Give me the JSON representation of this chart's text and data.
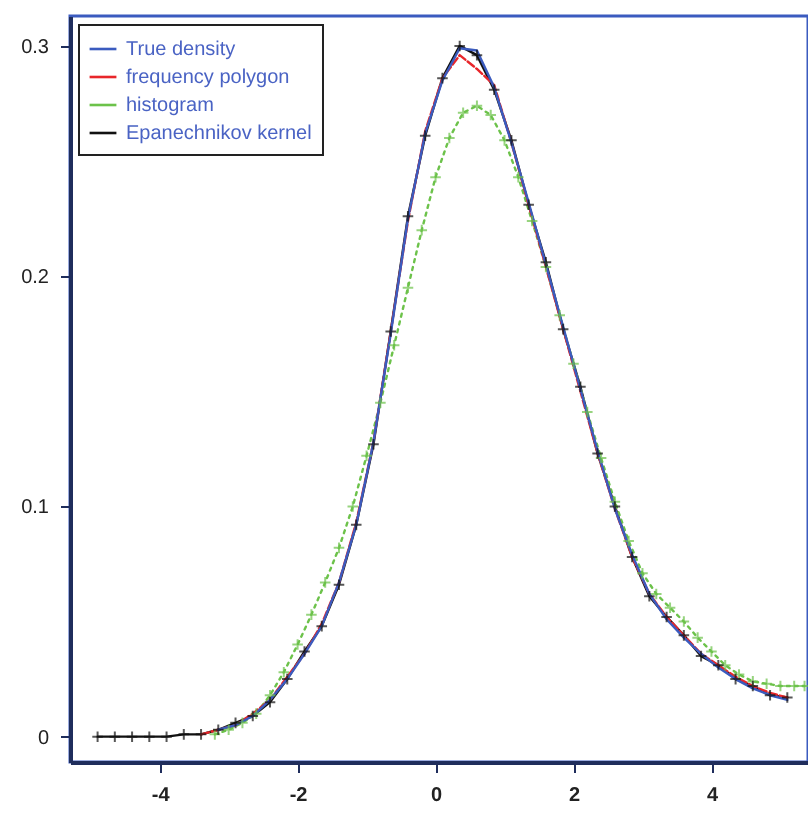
{
  "chart_data": {
    "type": "line",
    "xlim": [
      -5.3,
      5.4
    ],
    "ylim": [
      -0.011,
      0.313
    ],
    "xticks": [
      -4,
      -2,
      0,
      2,
      4
    ],
    "yticks": [
      {
        "value": 0,
        "label": "0"
      },
      {
        "value": 0.1,
        "label": "0.1"
      },
      {
        "value": 0.2,
        "label": "0.2"
      },
      {
        "value": 0.3,
        "label": "0.3"
      }
    ],
    "grid": false,
    "legend": "top left",
    "series": [
      {
        "name": "True density",
        "color": "#3b5bbf",
        "line_style": "solid",
        "marker": "none",
        "x": [
          -3.15,
          -2.9,
          -2.65,
          -2.4,
          -2.15,
          -1.9,
          -1.65,
          -1.4,
          -1.15,
          -0.9,
          -0.65,
          -0.4,
          -0.15,
          0.1,
          0.35,
          0.6,
          0.85,
          1.1,
          1.35,
          1.6,
          1.85,
          2.1,
          2.35,
          2.6,
          2.85,
          3.1,
          3.35,
          3.6,
          3.85,
          4.1,
          4.35,
          4.6,
          4.85,
          5.1
        ],
        "values": [
          0.003,
          0.005,
          0.009,
          0.016,
          0.025,
          0.036,
          0.048,
          0.067,
          0.092,
          0.128,
          0.175,
          0.225,
          0.262,
          0.285,
          0.299,
          0.298,
          0.282,
          0.258,
          0.232,
          0.205,
          0.178,
          0.151,
          0.124,
          0.099,
          0.079,
          0.062,
          0.051,
          0.043,
          0.036,
          0.03,
          0.025,
          0.021,
          0.018,
          0.016
        ]
      },
      {
        "name": "frequency polygon",
        "color": "#e8262a",
        "line_style": "dashed",
        "marker": "none",
        "x": [
          -3.4,
          -3.15,
          -2.9,
          -2.65,
          -2.4,
          -2.15,
          -1.9,
          -1.65,
          -1.4,
          -1.15,
          -0.9,
          -0.65,
          -0.4,
          -0.15,
          0.1,
          0.35,
          0.6,
          0.85,
          1.1,
          1.35,
          1.6,
          1.85,
          2.1,
          2.35,
          2.6,
          2.85,
          3.1,
          3.35,
          3.6,
          3.85,
          4.1,
          4.35,
          4.6,
          4.85,
          5.1
        ],
        "values": [
          0.001,
          0.003,
          0.005,
          0.01,
          0.016,
          0.026,
          0.036,
          0.049,
          0.067,
          0.093,
          0.128,
          0.176,
          0.224,
          0.263,
          0.286,
          0.296,
          0.29,
          0.283,
          0.258,
          0.231,
          0.204,
          0.177,
          0.15,
          0.123,
          0.099,
          0.078,
          0.062,
          0.052,
          0.044,
          0.036,
          0.031,
          0.026,
          0.022,
          0.019,
          0.017
        ]
      },
      {
        "name": "histogram",
        "color": "#6cc24a",
        "line_style": "dotted",
        "marker": "cross",
        "x": [
          -3.2,
          -3.0,
          -2.8,
          -2.6,
          -2.4,
          -2.2,
          -2.0,
          -1.8,
          -1.6,
          -1.4,
          -1.2,
          -1.0,
          -0.8,
          -0.6,
          -0.4,
          -0.2,
          0,
          0.2,
          0.4,
          0.6,
          0.8,
          1.0,
          1.2,
          1.4,
          1.6,
          1.8,
          2.0,
          2.2,
          2.4,
          2.6,
          2.8,
          3.0,
          3.2,
          3.4,
          3.6,
          3.8,
          4.0,
          4.2,
          4.4,
          4.6,
          4.8,
          5.0,
          5.2,
          5.35
        ],
        "values": [
          0.001,
          0.003,
          0.006,
          0.01,
          0.018,
          0.028,
          0.04,
          0.053,
          0.067,
          0.082,
          0.1,
          0.122,
          0.145,
          0.17,
          0.195,
          0.22,
          0.243,
          0.26,
          0.271,
          0.274,
          0.27,
          0.259,
          0.243,
          0.224,
          0.204,
          0.183,
          0.162,
          0.141,
          0.121,
          0.102,
          0.085,
          0.071,
          0.062,
          0.056,
          0.05,
          0.043,
          0.037,
          0.031,
          0.027,
          0.024,
          0.023,
          0.022,
          0.022,
          0.022
        ]
      },
      {
        "name": "Epanechnikov kernel",
        "color": "#111111",
        "line_style": "solid",
        "marker": "cross",
        "x": [
          -4.9,
          -4.65,
          -4.4,
          -4.15,
          -3.9,
          -3.65,
          -3.4,
          -3.15,
          -2.9,
          -2.65,
          -2.4,
          -2.15,
          -1.9,
          -1.65,
          -1.4,
          -1.15,
          -0.9,
          -0.65,
          -0.4,
          -0.15,
          0.1,
          0.35,
          0.6,
          0.85,
          1.1,
          1.35,
          1.6,
          1.85,
          2.1,
          2.35,
          2.6,
          2.85,
          3.1,
          3.35,
          3.6,
          3.85,
          4.1,
          4.35,
          4.6,
          4.85,
          5.1
        ],
        "values": [
          0,
          0,
          0,
          0,
          0,
          0.001,
          0.001,
          0.003,
          0.006,
          0.009,
          0.015,
          0.025,
          0.037,
          0.048,
          0.066,
          0.092,
          0.127,
          0.176,
          0.226,
          0.261,
          0.286,
          0.3,
          0.296,
          0.281,
          0.259,
          0.231,
          0.206,
          0.177,
          0.152,
          0.123,
          0.1,
          0.078,
          0.061,
          0.052,
          0.044,
          0.035,
          0.031,
          0.025,
          0.022,
          0.018,
          0.017
        ]
      }
    ]
  }
}
